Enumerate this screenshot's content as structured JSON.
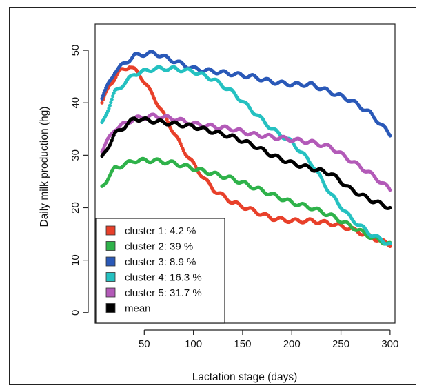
{
  "chart_data": {
    "type": "scatter",
    "title": "",
    "xlabel": "Lactation stage (days)",
    "ylabel": "Daily milk production (hg)",
    "xlim": [
      0,
      305
    ],
    "ylim": [
      -2,
      55
    ],
    "xticks": [
      50,
      100,
      150,
      200,
      250,
      300
    ],
    "yticks": [
      0,
      10,
      20,
      30,
      40,
      50
    ],
    "legend_position": "bottom-left",
    "grid": false,
    "series": [
      {
        "name": "cluster 1: 4.2 %",
        "color": "#e8402a",
        "points": [
          [
            7,
            40
          ],
          [
            15,
            43.5
          ],
          [
            25,
            46
          ],
          [
            35,
            47
          ],
          [
            45,
            45.5
          ],
          [
            60,
            41
          ],
          [
            75,
            36
          ],
          [
            90,
            31
          ],
          [
            105,
            27
          ],
          [
            120,
            23.5
          ],
          [
            140,
            21
          ],
          [
            160,
            19.5
          ],
          [
            180,
            18
          ],
          [
            200,
            17.5
          ],
          [
            220,
            17.5
          ],
          [
            240,
            17
          ],
          [
            260,
            16
          ],
          [
            280,
            14.5
          ],
          [
            300,
            13
          ]
        ]
      },
      {
        "name": "cluster 2: 39 %",
        "color": "#2fb24a",
        "points": [
          [
            7,
            24
          ],
          [
            20,
            27.5
          ],
          [
            40,
            29
          ],
          [
            60,
            29
          ],
          [
            80,
            28.5
          ],
          [
            100,
            27.5
          ],
          [
            120,
            26.5
          ],
          [
            140,
            25.5
          ],
          [
            160,
            24
          ],
          [
            180,
            22.5
          ],
          [
            200,
            21
          ],
          [
            220,
            20
          ],
          [
            240,
            18.5
          ],
          [
            260,
            16.5
          ],
          [
            280,
            14.5
          ],
          [
            300,
            13
          ]
        ]
      },
      {
        "name": "cluster 3: 8.9 %",
        "color": "#2a59b8",
        "points": [
          [
            7,
            41
          ],
          [
            20,
            46
          ],
          [
            40,
            49
          ],
          [
            60,
            49.5
          ],
          [
            80,
            48
          ],
          [
            100,
            46.5
          ],
          [
            120,
            46
          ],
          [
            140,
            45.5
          ],
          [
            160,
            45
          ],
          [
            180,
            44
          ],
          [
            200,
            43.5
          ],
          [
            220,
            43.5
          ],
          [
            240,
            42
          ],
          [
            260,
            40.5
          ],
          [
            280,
            38
          ],
          [
            300,
            34
          ]
        ]
      },
      {
        "name": "cluster 4: 16.3 %",
        "color": "#25c1c1",
        "points": [
          [
            7,
            36
          ],
          [
            20,
            42
          ],
          [
            40,
            45.5
          ],
          [
            60,
            46.5
          ],
          [
            80,
            46.5
          ],
          [
            100,
            46
          ],
          [
            120,
            44.5
          ],
          [
            140,
            42
          ],
          [
            160,
            38.5
          ],
          [
            180,
            35
          ],
          [
            200,
            32.5
          ],
          [
            220,
            28.5
          ],
          [
            240,
            22.5
          ],
          [
            260,
            18
          ],
          [
            280,
            15
          ],
          [
            300,
            13
          ]
        ]
      },
      {
        "name": "cluster 5: 31.7 %",
        "color": "#b35ab8",
        "points": [
          [
            7,
            31
          ],
          [
            20,
            35
          ],
          [
            40,
            37
          ],
          [
            60,
            37.5
          ],
          [
            80,
            37
          ],
          [
            100,
            36
          ],
          [
            120,
            35.5
          ],
          [
            140,
            35
          ],
          [
            160,
            34
          ],
          [
            180,
            33.5
          ],
          [
            200,
            33
          ],
          [
            220,
            32.5
          ],
          [
            240,
            31.5
          ],
          [
            260,
            29
          ],
          [
            280,
            26.5
          ],
          [
            300,
            23.5
          ]
        ]
      },
      {
        "name": "mean",
        "color": "#000000",
        "points": [
          [
            7,
            29.5
          ],
          [
            20,
            34
          ],
          [
            40,
            37
          ],
          [
            60,
            36.5
          ],
          [
            80,
            36
          ],
          [
            100,
            35.5
          ],
          [
            120,
            34.5
          ],
          [
            140,
            33.5
          ],
          [
            160,
            32
          ],
          [
            180,
            30
          ],
          [
            200,
            28.5
          ],
          [
            220,
            27.5
          ],
          [
            240,
            26.5
          ],
          [
            260,
            23.5
          ],
          [
            280,
            21.5
          ],
          [
            300,
            20
          ]
        ]
      }
    ]
  }
}
